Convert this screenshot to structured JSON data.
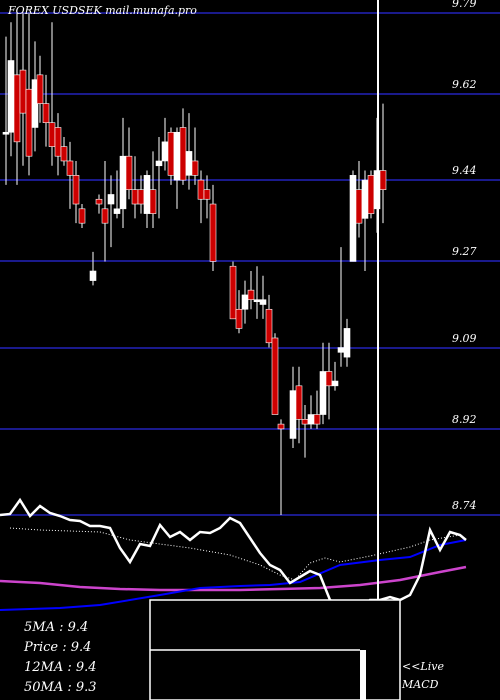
{
  "chart_data": {
    "type": "candlestick",
    "title": "FOREX  USDSEK",
    "source": "mail.munafa.pro",
    "y_ticks": [
      "9.79",
      "9.62",
      "9.44",
      "9.27",
      "9.09",
      "8.92",
      "8.74"
    ],
    "ylim": [
      8.74,
      9.79
    ],
    "colors": {
      "up": "#ffffff",
      "down": "#cc0000",
      "grid": "#1a1a8c",
      "ema": "#0000ff",
      "sma": "#cc44cc"
    },
    "candles": [
      {
        "x": 6,
        "o": 9.54,
        "h": 9.74,
        "l": 9.43,
        "c": 9.54
      },
      {
        "x": 11,
        "o": 9.54,
        "h": 9.77,
        "l": 9.49,
        "c": 9.69
      },
      {
        "x": 17,
        "o": 9.66,
        "h": 9.79,
        "l": 9.43,
        "c": 9.52
      },
      {
        "x": 23,
        "o": 9.67,
        "h": 9.79,
        "l": 9.47,
        "c": 9.58
      },
      {
        "x": 29,
        "o": 9.63,
        "h": 9.79,
        "l": 9.45,
        "c": 9.49
      },
      {
        "x": 35,
        "o": 9.55,
        "h": 9.73,
        "l": 9.5,
        "c": 9.65
      },
      {
        "x": 40,
        "o": 9.66,
        "h": 9.7,
        "l": 9.56,
        "c": 9.6
      },
      {
        "x": 46,
        "o": 9.6,
        "h": 9.66,
        "l": 9.51,
        "c": 9.56
      },
      {
        "x": 52,
        "o": 9.56,
        "h": 9.77,
        "l": 9.47,
        "c": 9.51
      },
      {
        "x": 58,
        "o": 9.55,
        "h": 9.58,
        "l": 9.45,
        "c": 9.49
      },
      {
        "x": 64,
        "o": 9.51,
        "h": 9.53,
        "l": 9.47,
        "c": 9.48
      },
      {
        "x": 70,
        "o": 9.48,
        "h": 9.52,
        "l": 9.38,
        "c": 9.45
      },
      {
        "x": 76,
        "o": 9.45,
        "h": 9.48,
        "l": 9.35,
        "c": 9.39
      },
      {
        "x": 82,
        "o": 9.38,
        "h": 9.39,
        "l": 9.34,
        "c": 9.35
      },
      {
        "x": 93,
        "o": 9.23,
        "h": 9.29,
        "l": 9.22,
        "c": 9.25
      },
      {
        "x": 99,
        "o": 9.4,
        "h": 9.41,
        "l": 9.37,
        "c": 9.39
      },
      {
        "x": 105,
        "o": 9.38,
        "h": 9.48,
        "l": 9.27,
        "c": 9.35
      },
      {
        "x": 111,
        "o": 9.39,
        "h": 9.45,
        "l": 9.3,
        "c": 9.41
      },
      {
        "x": 117,
        "o": 9.37,
        "h": 9.46,
        "l": 9.36,
        "c": 9.38
      },
      {
        "x": 123,
        "o": 9.38,
        "h": 9.57,
        "l": 9.34,
        "c": 9.49
      },
      {
        "x": 129,
        "o": 9.49,
        "h": 9.55,
        "l": 9.4,
        "c": 9.42
      },
      {
        "x": 135,
        "o": 9.42,
        "h": 9.49,
        "l": 9.36,
        "c": 9.39
      },
      {
        "x": 141,
        "o": 9.42,
        "h": 9.45,
        "l": 9.37,
        "c": 9.39
      },
      {
        "x": 147,
        "o": 9.37,
        "h": 9.46,
        "l": 9.34,
        "c": 9.45
      },
      {
        "x": 153,
        "o": 9.42,
        "h": 9.5,
        "l": 9.34,
        "c": 9.37
      },
      {
        "x": 159,
        "o": 9.47,
        "h": 9.53,
        "l": 9.36,
        "c": 9.48
      },
      {
        "x": 165,
        "o": 9.48,
        "h": 9.57,
        "l": 9.46,
        "c": 9.52
      },
      {
        "x": 171,
        "o": 9.54,
        "h": 9.55,
        "l": 9.43,
        "c": 9.45
      },
      {
        "x": 177,
        "o": 9.44,
        "h": 9.55,
        "l": 9.38,
        "c": 9.54
      },
      {
        "x": 183,
        "o": 9.55,
        "h": 9.59,
        "l": 9.43,
        "c": 9.44
      },
      {
        "x": 189,
        "o": 9.45,
        "h": 9.58,
        "l": 9.42,
        "c": 9.5
      },
      {
        "x": 195,
        "o": 9.48,
        "h": 9.55,
        "l": 9.43,
        "c": 9.45
      },
      {
        "x": 201,
        "o": 9.44,
        "h": 9.46,
        "l": 9.35,
        "c": 9.4
      },
      {
        "x": 207,
        "o": 9.42,
        "h": 9.45,
        "l": 9.36,
        "c": 9.4
      },
      {
        "x": 213,
        "o": 9.39,
        "h": 9.43,
        "l": 9.25,
        "c": 9.27
      },
      {
        "x": 233,
        "o": 9.26,
        "h": 9.27,
        "l": 9.15,
        "c": 9.15
      },
      {
        "x": 239,
        "o": 9.17,
        "h": 9.21,
        "l": 9.12,
        "c": 9.13
      },
      {
        "x": 245,
        "o": 9.17,
        "h": 9.23,
        "l": 9.14,
        "c": 9.2
      },
      {
        "x": 251,
        "o": 9.21,
        "h": 9.25,
        "l": 9.17,
        "c": 9.19
      },
      {
        "x": 257,
        "o": 9.19,
        "h": 9.26,
        "l": 9.15,
        "c": 9.19
      },
      {
        "x": 263,
        "o": 9.18,
        "h": 9.24,
        "l": 9.15,
        "c": 9.19
      },
      {
        "x": 269,
        "o": 9.17,
        "h": 9.2,
        "l": 9.09,
        "c": 9.1
      },
      {
        "x": 275,
        "o": 9.11,
        "h": 9.12,
        "l": 8.95,
        "c": 8.95
      },
      {
        "x": 281,
        "o": 8.93,
        "h": 8.94,
        "l": 8.74,
        "c": 8.92
      },
      {
        "x": 293,
        "o": 8.9,
        "h": 9.05,
        "l": 8.88,
        "c": 9.0
      },
      {
        "x": 299,
        "o": 9.01,
        "h": 9.05,
        "l": 8.89,
        "c": 8.94
      },
      {
        "x": 305,
        "o": 8.94,
        "h": 8.97,
        "l": 8.86,
        "c": 8.93
      },
      {
        "x": 311,
        "o": 8.93,
        "h": 8.99,
        "l": 8.92,
        "c": 8.95
      },
      {
        "x": 317,
        "o": 8.95,
        "h": 9.0,
        "l": 8.92,
        "c": 8.93
      },
      {
        "x": 323,
        "o": 8.95,
        "h": 9.1,
        "l": 8.93,
        "c": 9.04
      },
      {
        "x": 329,
        "o": 9.04,
        "h": 9.1,
        "l": 8.94,
        "c": 9.01
      },
      {
        "x": 335,
        "o": 9.01,
        "h": 9.06,
        "l": 9.0,
        "c": 9.02
      },
      {
        "x": 341,
        "o": 9.08,
        "h": 9.3,
        "l": 9.05,
        "c": 9.09
      },
      {
        "x": 347,
        "o": 9.07,
        "h": 9.15,
        "l": 9.05,
        "c": 9.13
      },
      {
        "x": 353,
        "o": 9.27,
        "h": 9.46,
        "l": 9.27,
        "c": 9.45
      },
      {
        "x": 359,
        "o": 9.42,
        "h": 9.48,
        "l": 9.32,
        "c": 9.35
      },
      {
        "x": 365,
        "o": 9.36,
        "h": 9.46,
        "l": 9.25,
        "c": 9.44
      },
      {
        "x": 371,
        "o": 9.45,
        "h": 9.46,
        "l": 9.36,
        "c": 9.37
      },
      {
        "x": 377,
        "o": 9.38,
        "h": 9.57,
        "l": 9.33,
        "c": 9.46
      },
      {
        "x": 383,
        "o": 9.46,
        "h": 9.6,
        "l": 9.35,
        "c": 9.42
      }
    ],
    "indicators": {
      "price_line": [
        [
          0,
          515
        ],
        [
          10,
          514
        ],
        [
          20,
          500
        ],
        [
          30,
          516
        ],
        [
          40,
          506
        ],
        [
          50,
          513
        ],
        [
          60,
          516
        ],
        [
          70,
          520
        ],
        [
          80,
          521
        ],
        [
          90,
          526
        ],
        [
          100,
          526
        ],
        [
          110,
          528
        ],
        [
          120,
          548
        ],
        [
          130,
          562
        ],
        [
          140,
          544
        ],
        [
          150,
          546
        ],
        [
          160,
          525
        ],
        [
          170,
          537
        ],
        [
          180,
          532
        ],
        [
          190,
          540
        ],
        [
          200,
          532
        ],
        [
          210,
          533
        ],
        [
          220,
          528
        ],
        [
          230,
          518
        ],
        [
          240,
          523
        ],
        [
          250,
          538
        ],
        [
          260,
          553
        ],
        [
          270,
          565
        ],
        [
          280,
          570
        ],
        [
          290,
          583
        ],
        [
          300,
          577
        ],
        [
          310,
          571
        ],
        [
          320,
          575
        ],
        [
          330,
          600
        ],
        [
          340,
          605
        ],
        [
          350,
          610
        ],
        [
          360,
          610
        ],
        [
          370,
          600
        ],
        [
          380,
          600
        ],
        [
          390,
          597
        ],
        [
          400,
          600
        ],
        [
          410,
          595
        ],
        [
          420,
          575
        ],
        [
          430,
          530
        ],
        [
          440,
          550
        ],
        [
          450,
          532
        ],
        [
          460,
          535
        ],
        [
          466,
          540
        ]
      ],
      "dotted_line": [
        [
          10,
          528
        ],
        [
          40,
          530
        ],
        [
          100,
          532
        ],
        [
          130,
          540
        ],
        [
          190,
          548
        ],
        [
          230,
          555
        ],
        [
          260,
          565
        ],
        [
          280,
          575
        ],
        [
          295,
          580
        ],
        [
          310,
          563
        ],
        [
          325,
          558
        ],
        [
          340,
          562
        ],
        [
          370,
          556
        ],
        [
          410,
          547
        ],
        [
          430,
          540
        ],
        [
          460,
          535
        ]
      ],
      "blue_line": [
        [
          0,
          610
        ],
        [
          60,
          608
        ],
        [
          100,
          605
        ],
        [
          160,
          595
        ],
        [
          200,
          588
        ],
        [
          240,
          586
        ],
        [
          270,
          585
        ],
        [
          300,
          582
        ],
        [
          340,
          565
        ],
        [
          380,
          560
        ],
        [
          410,
          557
        ],
        [
          440,
          545
        ],
        [
          466,
          540
        ]
      ],
      "magenta_line": [
        [
          0,
          581
        ],
        [
          40,
          583
        ],
        [
          80,
          587
        ],
        [
          120,
          589
        ],
        [
          160,
          590
        ],
        [
          200,
          590
        ],
        [
          240,
          590
        ],
        [
          280,
          589
        ],
        [
          320,
          588
        ],
        [
          360,
          585
        ],
        [
          400,
          580
        ],
        [
          440,
          572
        ],
        [
          466,
          567
        ]
      ]
    }
  },
  "stats": {
    "ma5": "5MA : 9.4",
    "price": "Price  : 9.4",
    "ma12": "12MA : 9.4",
    "ma50": "50MA : 9.3"
  },
  "macd_label": "<<Live\nMACD"
}
